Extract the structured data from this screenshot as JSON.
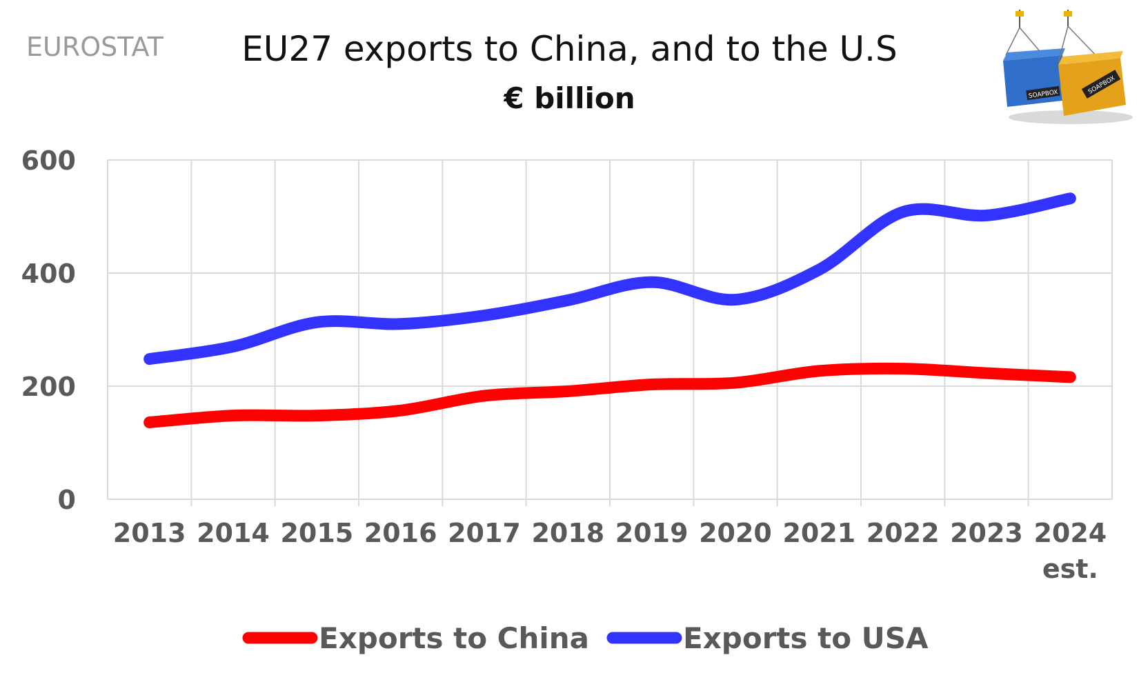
{
  "source_label": "EUROSTAT",
  "header": {
    "title": "EU27 exports to China, and to the U.S",
    "subtitle": "€ billion"
  },
  "logo": {
    "icon": "shipping-containers-icon",
    "left_text": "SOAPBOX",
    "right_text": "SOAPBOX"
  },
  "chart_data": {
    "type": "line",
    "categories": [
      "2013",
      "2014",
      "2015",
      "2016",
      "2017",
      "2018",
      "2019",
      "2020",
      "2021",
      "2022",
      "2023",
      "2024"
    ],
    "category_sublabels": [
      "",
      "",
      "",
      "",
      "",
      "",
      "",
      "",
      "",
      "",
      "",
      "est."
    ],
    "ylim": [
      0,
      600
    ],
    "yticks": [
      "0",
      "200",
      "400",
      "600"
    ],
    "grid": true,
    "legend_position": "bottom",
    "series": [
      {
        "name": "Exports to China",
        "color": "#ff0000",
        "values": [
          136,
          148,
          148,
          157,
          183,
          191,
          203,
          206,
          227,
          231,
          223,
          216
        ]
      },
      {
        "name": "Exports to USA",
        "color": "#3333ff",
        "values": [
          248,
          270,
          313,
          310,
          325,
          352,
          384,
          353,
          406,
          508,
          502,
          532
        ]
      }
    ]
  }
}
